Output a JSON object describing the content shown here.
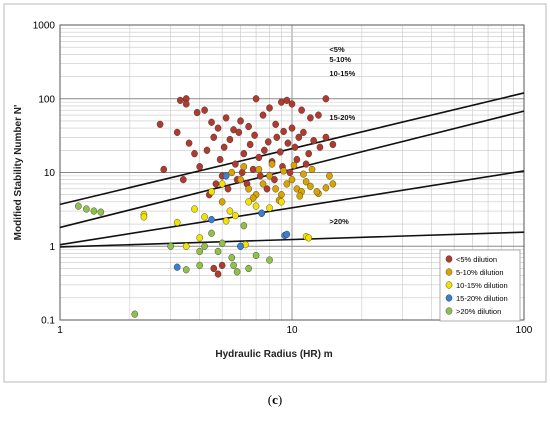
{
  "caption": {
    "open": "(",
    "letter": "c",
    "close": ")"
  },
  "chart_data": {
    "type": "scatter",
    "title": "",
    "xlabel": "Hydraulic Radius (HR) m",
    "ylabel": "Modified Stability Number N'",
    "xscale": "log",
    "yscale": "log",
    "xlim": [
      1,
      100
    ],
    "ylim": [
      0.1,
      1000
    ],
    "x_ticks": [
      "1",
      "10",
      "100"
    ],
    "y_ticks": [
      "0.1",
      "1",
      "10",
      "100",
      "1000"
    ],
    "grid": true,
    "legend_position": "bottom-right",
    "boundary_lines": [
      {
        "label": "<5%",
        "x": [
          1,
          100
        ],
        "y": [
          3.7,
          120
        ]
      },
      {
        "label": "5-10%",
        "x": [
          1,
          100
        ],
        "y": [
          1.8,
          68
        ]
      },
      {
        "label": "10-15%",
        "x": [
          1,
          100
        ],
        "y": [
          1.05,
          10.5
        ]
      },
      {
        "label": "15-20%",
        "x": [
          1,
          100
        ],
        "y": [
          0.98,
          1.55
        ]
      },
      {
        "label": ">20%",
        "x": [],
        "y": []
      }
    ],
    "series": [
      {
        "name": "<5% dilution",
        "color": "#b03a2e",
        "points": [
          [
            2.7,
            45
          ],
          [
            3.3,
            95
          ],
          [
            3.5,
            100
          ],
          [
            3.5,
            85
          ],
          [
            3.9,
            65
          ],
          [
            4.2,
            70
          ],
          [
            4.5,
            48
          ],
          [
            4.8,
            40
          ],
          [
            5.2,
            55
          ],
          [
            5.6,
            38
          ],
          [
            6.0,
            50
          ],
          [
            6.5,
            42
          ],
          [
            7.0,
            100
          ],
          [
            7.5,
            60
          ],
          [
            8.0,
            75
          ],
          [
            8.5,
            45
          ],
          [
            9.0,
            90
          ],
          [
            9.5,
            95
          ],
          [
            10.0,
            85
          ],
          [
            11.0,
            70
          ],
          [
            12.0,
            55
          ],
          [
            13.0,
            60
          ],
          [
            14.0,
            100
          ],
          [
            2.8,
            11
          ],
          [
            3.2,
            35
          ],
          [
            3.4,
            8
          ],
          [
            3.6,
            25
          ],
          [
            3.8,
            18
          ],
          [
            4.0,
            12
          ],
          [
            4.3,
            20
          ],
          [
            4.6,
            30
          ],
          [
            4.9,
            15
          ],
          [
            5.1,
            22
          ],
          [
            5.4,
            28
          ],
          [
            5.7,
            13
          ],
          [
            5.9,
            35
          ],
          [
            6.2,
            18
          ],
          [
            6.6,
            24
          ],
          [
            6.9,
            32
          ],
          [
            7.2,
            16
          ],
          [
            7.6,
            20
          ],
          [
            7.9,
            26
          ],
          [
            8.2,
            14
          ],
          [
            8.6,
            30
          ],
          [
            8.9,
            19
          ],
          [
            9.2,
            36
          ],
          [
            9.6,
            25
          ],
          [
            10.0,
            40
          ],
          [
            10.3,
            22
          ],
          [
            10.7,
            30
          ],
          [
            11.2,
            35
          ],
          [
            11.8,
            18
          ],
          [
            12.4,
            27
          ],
          [
            13.2,
            22
          ],
          [
            14.0,
            30
          ],
          [
            15.0,
            24
          ],
          [
            4.4,
            5
          ],
          [
            4.7,
            7
          ],
          [
            5.0,
            9
          ],
          [
            5.3,
            6
          ],
          [
            5.8,
            8
          ],
          [
            6.1,
            10
          ],
          [
            6.4,
            7
          ],
          [
            6.8,
            11
          ],
          [
            7.3,
            9
          ],
          [
            7.8,
            6
          ],
          [
            8.4,
            8
          ],
          [
            9.1,
            12
          ],
          [
            9.8,
            10
          ],
          [
            10.5,
            15
          ],
          [
            11.5,
            13
          ],
          [
            4.8,
            0.42
          ],
          [
            4.6,
            0.5
          ],
          [
            5.0,
            0.55
          ]
        ]
      },
      {
        "name": "5-10% dilution",
        "color": "#d9a400",
        "points": [
          [
            6.0,
            8
          ],
          [
            6.5,
            6
          ],
          [
            7.0,
            5
          ],
          [
            7.5,
            7
          ],
          [
            8.0,
            9
          ],
          [
            8.5,
            6
          ],
          [
            9.0,
            5
          ],
          [
            9.5,
            7
          ],
          [
            10.0,
            8
          ],
          [
            10.5,
            6
          ],
          [
            11.0,
            5.5
          ],
          [
            11.5,
            7.5
          ],
          [
            12.0,
            6.5
          ],
          [
            13.0,
            5.2
          ],
          [
            14.0,
            6.2
          ],
          [
            15.0,
            7
          ],
          [
            5.5,
            10
          ],
          [
            6.2,
            12
          ],
          [
            7.2,
            11
          ],
          [
            8.2,
            13
          ],
          [
            9.2,
            10.5
          ],
          [
            10.2,
            12.5
          ],
          [
            11.2,
            9.5
          ],
          [
            12.2,
            11
          ],
          [
            5.0,
            4
          ],
          [
            6.8,
            4.5
          ],
          [
            8.8,
            4.2
          ],
          [
            10.8,
            4.8
          ],
          [
            12.8,
            5.5
          ],
          [
            14.5,
            9
          ]
        ]
      },
      {
        "name": "10-15% dilution",
        "color": "#f2e200",
        "points": [
          [
            2.3,
            2.7
          ],
          [
            2.3,
            2.5
          ],
          [
            3.2,
            2.1
          ],
          [
            3.8,
            3.2
          ],
          [
            4.2,
            2.5
          ],
          [
            4.5,
            5.5
          ],
          [
            5.0,
            7
          ],
          [
            5.4,
            3
          ],
          [
            5.7,
            2.6
          ],
          [
            6.0,
            1.0
          ],
          [
            6.3,
            1.05
          ],
          [
            6.5,
            4
          ],
          [
            7.0,
            3.5
          ],
          [
            7.4,
            2.8
          ],
          [
            8.0,
            3.3
          ],
          [
            9.0,
            4
          ],
          [
            11.5,
            1.35
          ],
          [
            11.8,
            1.3
          ],
          [
            3.5,
            1.0
          ],
          [
            4.0,
            1.3
          ],
          [
            5.2,
            2.2
          ]
        ]
      },
      {
        "name": "15-20% dilution",
        "color": "#3a7fd5",
        "points": [
          [
            3.2,
            0.52
          ],
          [
            4.5,
            2.3
          ],
          [
            5.2,
            9
          ],
          [
            6.0,
            1.0
          ],
          [
            7.4,
            2.8
          ],
          [
            9.3,
            1.4
          ],
          [
            9.5,
            1.45
          ]
        ]
      },
      {
        "name": ">20% dilution",
        "color": "#8fc04a",
        "points": [
          [
            1.2,
            3.5
          ],
          [
            1.3,
            3.2
          ],
          [
            1.4,
            3.0
          ],
          [
            1.5,
            2.9
          ],
          [
            3.0,
            1.0
          ],
          [
            3.5,
            0.48
          ],
          [
            4.0,
            0.85
          ],
          [
            4.2,
            1.0
          ],
          [
            4.5,
            1.5
          ],
          [
            5.0,
            1.1
          ],
          [
            5.5,
            0.7
          ],
          [
            5.8,
            0.45
          ],
          [
            6.2,
            1.9
          ],
          [
            6.5,
            0.5
          ],
          [
            2.1,
            0.12
          ],
          [
            4.8,
            0.85
          ],
          [
            5.6,
            0.55
          ],
          [
            7.0,
            0.75
          ],
          [
            8.0,
            0.65
          ],
          [
            4.0,
            0.55
          ]
        ]
      }
    ]
  }
}
